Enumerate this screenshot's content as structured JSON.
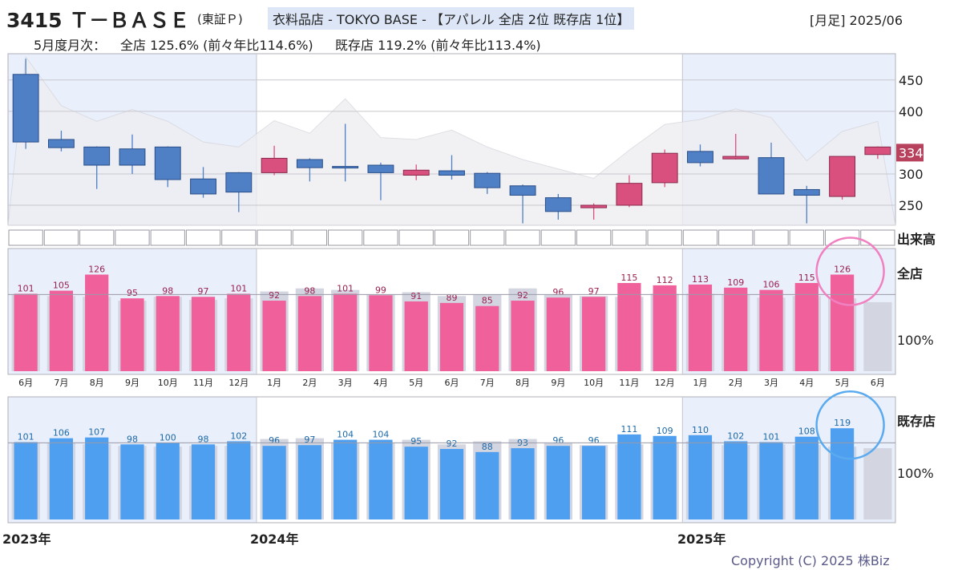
{
  "header": {
    "code_name": "3415 Ｔ－ＢＡＳＥ",
    "exchange": "(東証Ｐ)",
    "tag": "衣料品店 - TOKYO BASE - 【アパレル 全店 2位 既存店 1位】",
    "period": "[月足] 2025/06"
  },
  "summary": {
    "label": "5月度月次：",
    "all_store": "全店 125.6% (前々年比114.6%)",
    "existing_store": "既存店 119.2% (前々年比113.4%)"
  },
  "labels": {
    "volume": "出来高",
    "all_store_panel": "全店",
    "existing_store_panel": "既存店",
    "hundred_pct": "100%",
    "year_2023": "2023年",
    "year_2024": "2024年",
    "year_2025": "2025年",
    "copyright": "Copyright (C) 2025 株Biz"
  },
  "colors": {
    "up_candle": "#d9507f",
    "down_candle": "#4f7fc4",
    "all_store_bar": "#f0609a",
    "existing_store_bar": "#4f9ff0",
    "prev_bar": "#d3d5e0",
    "shade": "#e9effb",
    "all_circle": "#f080c0",
    "existing_circle": "#5aaaf0",
    "price_badge": "#b8425e"
  },
  "chart_data": [
    {
      "type": "candlestick",
      "title": "月足",
      "categories": [
        "2023/06",
        "2023/07",
        "2023/08",
        "2023/09",
        "2023/10",
        "2023/11",
        "2023/12",
        "2024/01",
        "2024/02",
        "2024/03",
        "2024/04",
        "2024/05",
        "2024/06",
        "2024/07",
        "2024/08",
        "2024/09",
        "2024/10",
        "2024/11",
        "2024/12",
        "2025/01",
        "2025/02",
        "2025/03",
        "2025/04",
        "2025/05",
        "2025/06"
      ],
      "ohlc": [
        [
          459,
          484,
          340,
          351
        ],
        [
          355,
          369,
          336,
          342
        ],
        [
          343,
          344,
          276,
          314
        ],
        [
          340,
          363,
          300,
          314
        ],
        [
          343,
          344,
          279,
          291
        ],
        [
          292,
          311,
          262,
          268
        ],
        [
          302,
          303,
          239,
          271
        ],
        [
          302,
          345,
          298,
          325
        ],
        [
          323,
          325,
          288,
          310
        ],
        [
          312,
          380,
          288,
          310
        ],
        [
          314,
          318,
          258,
          302
        ],
        [
          298,
          315,
          290,
          306
        ],
        [
          305,
          330,
          291,
          298
        ],
        [
          301,
          303,
          268,
          278
        ],
        [
          281,
          283,
          221,
          266
        ],
        [
          262,
          268,
          227,
          240
        ],
        [
          246,
          253,
          227,
          250
        ],
        [
          250,
          298,
          247,
          285
        ],
        [
          286,
          339,
          279,
          333
        ],
        [
          336,
          347,
          312,
          318
        ],
        [
          324,
          364,
          323,
          328
        ],
        [
          326,
          350,
          270,
          268
        ],
        [
          275,
          281,
          221,
          266
        ],
        [
          264,
          328,
          259,
          328
        ],
        [
          331,
          344,
          324,
          343
        ]
      ],
      "current_price": "334",
      "yticks": [
        250,
        300,
        400,
        450
      ],
      "ytick_labels": [
        "250",
        "300",
        "400",
        "450"
      ],
      "ylim": [
        218,
        492
      ]
    },
    {
      "type": "bar",
      "title": "全店",
      "categories": [
        "6月",
        "7月",
        "8月",
        "9月",
        "10月",
        "11月",
        "12月",
        "1月",
        "2月",
        "3月",
        "4月",
        "5月",
        "6月",
        "7月",
        "8月",
        "9月",
        "10月",
        "11月",
        "12月",
        "1月",
        "2月",
        "3月",
        "4月",
        "5月",
        "6月"
      ],
      "series": [
        {
          "name": "全店",
          "values": [
            101,
            105,
            126,
            95,
            98,
            97,
            101,
            92,
            98,
            101,
            99,
            91,
            89,
            85,
            92,
            96,
            97,
            115,
            112,
            113,
            109,
            106,
            115,
            126,
            null
          ]
        }
      ],
      "prev_values": [
        100,
        98,
        97,
        92,
        97,
        93,
        95,
        104,
        108,
        106,
        100,
        103,
        98,
        100,
        108,
        100,
        98,
        97,
        101,
        101,
        100,
        96,
        98,
        95,
        90
      ],
      "ylabel": "100%",
      "ylim": [
        0,
        160
      ]
    },
    {
      "type": "bar",
      "title": "既存店",
      "categories": [
        "6月",
        "7月",
        "8月",
        "9月",
        "10月",
        "11月",
        "12月",
        "1月",
        "2月",
        "3月",
        "4月",
        "5月",
        "6月",
        "7月",
        "8月",
        "9月",
        "10月",
        "11月",
        "12月",
        "1月",
        "2月",
        "3月",
        "4月",
        "5月",
        "6月"
      ],
      "series": [
        {
          "name": "既存店",
          "values": [
            101,
            106,
            107,
            98,
            100,
            98,
            102,
            96,
            97,
            104,
            104,
            95,
            92,
            88,
            93,
            96,
            96,
            111,
            109,
            110,
            102,
            101,
            108,
            119,
            null
          ]
        }
      ],
      "prev_values": [
        100,
        100,
        98,
        96,
        95,
        96,
        96,
        105,
        106,
        100,
        100,
        104,
        98,
        102,
        105,
        100,
        97,
        98,
        101,
        102,
        97,
        98,
        97,
        95,
        93
      ],
      "ylabel": "100%",
      "ylim": [
        0,
        160
      ]
    }
  ]
}
